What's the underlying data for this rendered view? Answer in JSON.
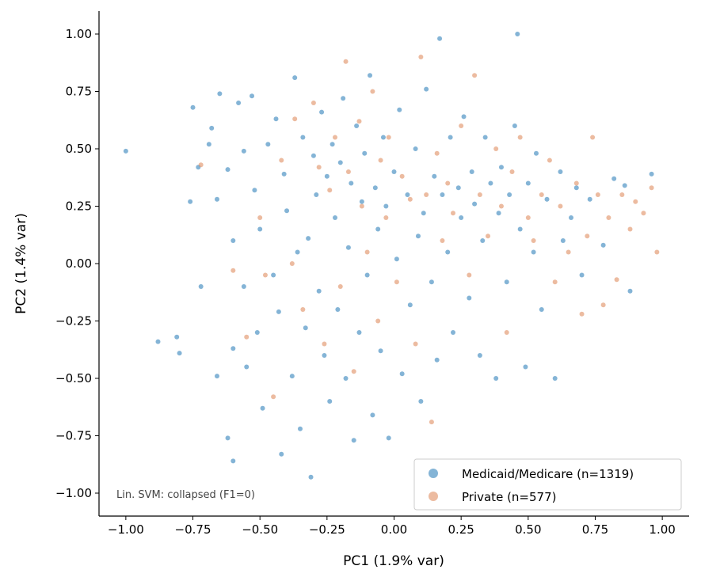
{
  "chart_data": {
    "type": "scatter",
    "xlabel": "PC1 (1.9% var)",
    "ylabel": "PC2 (1.4% var)",
    "xlim": [
      -1.1,
      1.1
    ],
    "ylim": [
      -1.1,
      1.1
    ],
    "xticks": [
      "−1.00",
      "−0.75",
      "−0.50",
      "−0.25",
      "0.00",
      "0.25",
      "0.50",
      "0.75",
      "1.00"
    ],
    "yticks": [
      "−1.00",
      "−0.75",
      "−0.50",
      "−0.25",
      "0.00",
      "0.25",
      "0.50",
      "0.75",
      "1.00"
    ],
    "grid": false,
    "legend_placement": "lower-right",
    "annotation": "Lin. SVM: collapsed (F1=0)",
    "series": [
      {
        "name": "Medicaid/Medicare (n=1319)",
        "color": "#1f77b4",
        "points": [
          [
            -1.0,
            0.49
          ],
          [
            -0.88,
            -0.34
          ],
          [
            -0.8,
            -0.39
          ],
          [
            -0.81,
            -0.32
          ],
          [
            -0.75,
            0.68
          ],
          [
            -0.76,
            0.27
          ],
          [
            -0.73,
            0.42
          ],
          [
            -0.72,
            -0.1
          ],
          [
            -0.69,
            0.52
          ],
          [
            -0.68,
            0.59
          ],
          [
            -0.66,
            0.28
          ],
          [
            -0.66,
            -0.49
          ],
          [
            -0.65,
            0.74
          ],
          [
            -0.62,
            0.41
          ],
          [
            -0.62,
            -0.76
          ],
          [
            -0.6,
            -0.86
          ],
          [
            -0.6,
            -0.37
          ],
          [
            -0.6,
            0.1
          ],
          [
            -0.58,
            0.7
          ],
          [
            -0.56,
            0.49
          ],
          [
            -0.56,
            -0.1
          ],
          [
            -0.55,
            -0.45
          ],
          [
            -0.53,
            0.73
          ],
          [
            -0.52,
            0.32
          ],
          [
            -0.51,
            -0.3
          ],
          [
            -0.5,
            0.15
          ],
          [
            -0.49,
            -0.63
          ],
          [
            -0.47,
            0.52
          ],
          [
            -0.45,
            -0.05
          ],
          [
            -0.44,
            0.63
          ],
          [
            -0.43,
            -0.21
          ],
          [
            -0.42,
            -0.83
          ],
          [
            -0.41,
            0.39
          ],
          [
            -0.4,
            0.23
          ],
          [
            -0.38,
            -0.49
          ],
          [
            -0.37,
            0.81
          ],
          [
            -0.36,
            0.05
          ],
          [
            -0.35,
            -0.72
          ],
          [
            -0.34,
            0.55
          ],
          [
            -0.33,
            -0.28
          ],
          [
            -0.32,
            0.11
          ],
          [
            -0.31,
            -0.93
          ],
          [
            -0.3,
            0.47
          ],
          [
            -0.29,
            0.3
          ],
          [
            -0.28,
            -0.12
          ],
          [
            -0.27,
            0.66
          ],
          [
            -0.26,
            -0.4
          ],
          [
            -0.25,
            0.38
          ],
          [
            -0.24,
            -0.6
          ],
          [
            -0.23,
            0.52
          ],
          [
            -0.22,
            0.2
          ],
          [
            -0.21,
            -0.2
          ],
          [
            -0.2,
            0.44
          ],
          [
            -0.19,
            0.72
          ],
          [
            -0.18,
            -0.5
          ],
          [
            -0.17,
            0.07
          ],
          [
            -0.16,
            0.35
          ],
          [
            -0.15,
            -0.77
          ],
          [
            -0.14,
            0.6
          ],
          [
            -0.13,
            -0.3
          ],
          [
            -0.12,
            0.27
          ],
          [
            -0.11,
            0.48
          ],
          [
            -0.1,
            -0.05
          ],
          [
            -0.09,
            0.82
          ],
          [
            -0.08,
            -0.66
          ],
          [
            -0.07,
            0.33
          ],
          [
            -0.06,
            0.15
          ],
          [
            -0.05,
            -0.38
          ],
          [
            -0.04,
            0.55
          ],
          [
            -0.03,
            0.25
          ],
          [
            -0.02,
            -0.76
          ],
          [
            0.0,
            0.4
          ],
          [
            0.01,
            0.02
          ],
          [
            0.02,
            0.67
          ],
          [
            0.03,
            -0.48
          ],
          [
            0.05,
            0.3
          ],
          [
            0.06,
            -0.18
          ],
          [
            0.08,
            0.5
          ],
          [
            0.09,
            0.12
          ],
          [
            0.1,
            -0.6
          ],
          [
            0.11,
            0.22
          ],
          [
            0.12,
            0.76
          ],
          [
            0.14,
            -0.08
          ],
          [
            0.15,
            0.38
          ],
          [
            0.16,
            -0.42
          ],
          [
            0.17,
            0.98
          ],
          [
            0.18,
            0.3
          ],
          [
            0.2,
            0.05
          ],
          [
            0.21,
            0.55
          ],
          [
            0.22,
            -0.3
          ],
          [
            0.24,
            0.33
          ],
          [
            0.25,
            0.2
          ],
          [
            0.26,
            0.64
          ],
          [
            0.28,
            -0.15
          ],
          [
            0.29,
            0.4
          ],
          [
            0.3,
            0.26
          ],
          [
            0.32,
            -0.4
          ],
          [
            0.33,
            0.1
          ],
          [
            0.34,
            0.55
          ],
          [
            0.36,
            0.35
          ],
          [
            0.38,
            -0.5
          ],
          [
            0.39,
            0.22
          ],
          [
            0.4,
            0.42
          ],
          [
            0.42,
            -0.08
          ],
          [
            0.43,
            0.3
          ],
          [
            0.45,
            0.6
          ],
          [
            0.46,
            1.0
          ],
          [
            0.47,
            0.15
          ],
          [
            0.49,
            -0.45
          ],
          [
            0.5,
            0.35
          ],
          [
            0.52,
            0.05
          ],
          [
            0.53,
            0.48
          ],
          [
            0.55,
            -0.2
          ],
          [
            0.57,
            0.28
          ],
          [
            0.6,
            -0.5
          ],
          [
            0.62,
            0.4
          ],
          [
            0.63,
            0.1
          ],
          [
            0.66,
            0.2
          ],
          [
            0.68,
            0.33
          ],
          [
            0.7,
            -0.05
          ],
          [
            0.73,
            0.28
          ],
          [
            0.78,
            0.08
          ],
          [
            0.82,
            0.37
          ],
          [
            0.86,
            0.34
          ],
          [
            0.88,
            -0.12
          ],
          [
            0.96,
            0.39
          ]
        ]
      },
      {
        "name": "Private (n=577)",
        "color": "#dd8452",
        "points": [
          [
            -0.72,
            0.43
          ],
          [
            -0.6,
            -0.03
          ],
          [
            -0.55,
            -0.32
          ],
          [
            -0.5,
            0.2
          ],
          [
            -0.48,
            -0.05
          ],
          [
            -0.45,
            -0.58
          ],
          [
            -0.42,
            0.45
          ],
          [
            -0.38,
            0.0
          ],
          [
            -0.37,
            0.63
          ],
          [
            -0.34,
            -0.2
          ],
          [
            -0.3,
            0.7
          ],
          [
            -0.28,
            0.42
          ],
          [
            -0.26,
            -0.35
          ],
          [
            -0.24,
            0.32
          ],
          [
            -0.22,
            0.55
          ],
          [
            -0.2,
            -0.1
          ],
          [
            -0.18,
            0.88
          ],
          [
            -0.17,
            0.4
          ],
          [
            -0.15,
            -0.47
          ],
          [
            -0.13,
            0.62
          ],
          [
            -0.12,
            0.25
          ],
          [
            -0.1,
            0.05
          ],
          [
            -0.08,
            0.75
          ],
          [
            -0.06,
            -0.25
          ],
          [
            -0.05,
            0.45
          ],
          [
            -0.03,
            0.2
          ],
          [
            -0.02,
            0.55
          ],
          [
            0.01,
            -0.08
          ],
          [
            0.03,
            0.38
          ],
          [
            0.06,
            0.28
          ],
          [
            0.08,
            -0.35
          ],
          [
            0.1,
            0.9
          ],
          [
            0.12,
            0.3
          ],
          [
            0.14,
            -0.69
          ],
          [
            0.16,
            0.48
          ],
          [
            0.18,
            0.1
          ],
          [
            0.2,
            0.35
          ],
          [
            0.22,
            0.22
          ],
          [
            0.25,
            0.6
          ],
          [
            0.28,
            -0.05
          ],
          [
            0.3,
            0.82
          ],
          [
            0.32,
            0.3
          ],
          [
            0.35,
            0.12
          ],
          [
            0.38,
            0.5
          ],
          [
            0.4,
            0.25
          ],
          [
            0.42,
            -0.3
          ],
          [
            0.44,
            0.4
          ],
          [
            0.47,
            0.55
          ],
          [
            0.5,
            0.2
          ],
          [
            0.52,
            0.1
          ],
          [
            0.55,
            0.3
          ],
          [
            0.58,
            0.45
          ],
          [
            0.6,
            -0.08
          ],
          [
            0.62,
            0.25
          ],
          [
            0.65,
            0.05
          ],
          [
            0.68,
            0.35
          ],
          [
            0.7,
            -0.22
          ],
          [
            0.72,
            0.12
          ],
          [
            0.74,
            0.55
          ],
          [
            0.76,
            0.3
          ],
          [
            0.78,
            -0.18
          ],
          [
            0.8,
            0.2
          ],
          [
            0.83,
            -0.07
          ],
          [
            0.85,
            0.3
          ],
          [
            0.88,
            0.15
          ],
          [
            0.9,
            0.27
          ],
          [
            0.93,
            0.22
          ],
          [
            0.96,
            0.33
          ],
          [
            0.98,
            0.05
          ]
        ]
      }
    ]
  }
}
